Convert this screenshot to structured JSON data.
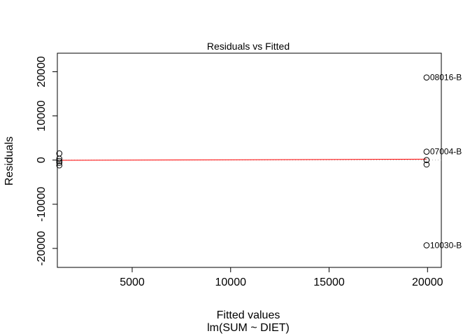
{
  "chart_data": {
    "type": "scatter",
    "title": "Residuals vs Fitted",
    "xlabel": "Fitted values",
    "xlabel_sub": "lm(SUM ~ DIET)",
    "ylabel": "Residuals",
    "xlim": [
      1200,
      20700
    ],
    "ylim": [
      -24300,
      24200
    ],
    "x_ticks": [
      5000,
      10000,
      15000,
      20000
    ],
    "y_ticks": [
      -20000,
      -10000,
      0,
      10000,
      20000
    ],
    "grid": false,
    "points": [
      {
        "x": 1300,
        "y": 1500
      },
      {
        "x": 1300,
        "y": 300
      },
      {
        "x": 1300,
        "y": -200
      },
      {
        "x": 1300,
        "y": -600
      },
      {
        "x": 1300,
        "y": -1200
      },
      {
        "x": 19950,
        "y": 18700,
        "label": "08016-B"
      },
      {
        "x": 19950,
        "y": 1900,
        "label": "07004-B"
      },
      {
        "x": 19950,
        "y": 0
      },
      {
        "x": 19950,
        "y": -1000
      },
      {
        "x": 19950,
        "y": -19300,
        "label": "10030-B"
      }
    ],
    "reference_line": {
      "y": 0,
      "style": "dotted",
      "color": "#b0b0b0"
    },
    "smooth_line": {
      "color": "#ff0000",
      "points": [
        {
          "x": 1300,
          "y": -50
        },
        {
          "x": 19950,
          "y": 200
        }
      ]
    }
  }
}
